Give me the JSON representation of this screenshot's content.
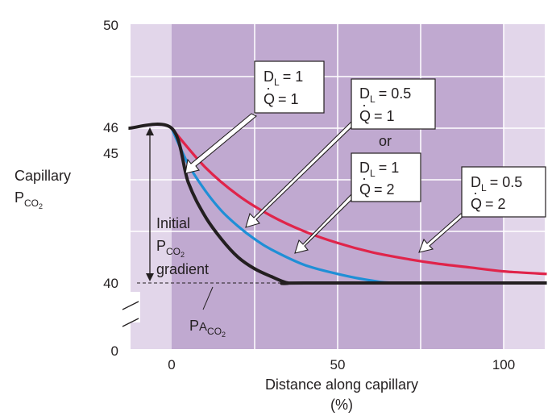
{
  "chart_data": {
    "type": "line",
    "title": "",
    "xlabel": "Distance along capillary",
    "xlabel_unit": "(%)",
    "ylabel": "Capillary",
    "ylabel_symbol": "P",
    "ylabel_subscript": "CO",
    "ylabel_sub_subscript": "2",
    "x_ticks": [
      "0",
      "50",
      "100"
    ],
    "y_ticks": [
      "0",
      "40",
      "45",
      "46",
      "50"
    ],
    "xlim": [
      -13,
      113
    ],
    "y_axis_break": [
      0,
      40
    ],
    "y_visible_range": [
      40,
      50
    ],
    "grid": true,
    "gridlines_x": [
      25,
      50,
      75,
      100
    ],
    "gridlines_y": [
      42,
      44,
      46,
      48
    ],
    "shaded_region_x": [
      0,
      100
    ],
    "series": [
      {
        "id": "dl1_q1",
        "color": "#231f20",
        "x": [
          -13,
          0,
          5,
          10,
          15,
          20,
          25,
          30,
          35,
          40,
          113
        ],
        "y": [
          46,
          46,
          43.9,
          42.6,
          41.7,
          41.0,
          40.55,
          40.25,
          40.0,
          40.0,
          40.0
        ]
      },
      {
        "id": "dl05_q1_or_dl1_q2",
        "color": "#1f8fd6",
        "x": [
          0,
          5,
          10,
          15,
          20,
          25,
          30,
          40,
          50,
          60,
          70,
          113
        ],
        "y": [
          46,
          44.6,
          43.6,
          42.8,
          42.2,
          41.7,
          41.3,
          40.7,
          40.35,
          40.1,
          40.0,
          40.0
        ]
      },
      {
        "id": "dl05_q2",
        "color": "#e0244a",
        "x": [
          0,
          10,
          20,
          30,
          40,
          50,
          60,
          70,
          80,
          90,
          100,
          113
        ],
        "y": [
          46,
          44.5,
          43.4,
          42.6,
          42.0,
          41.55,
          41.2,
          40.95,
          40.75,
          40.6,
          40.45,
          40.35
        ]
      }
    ],
    "annotations": {
      "initial_gradient": [
        "Initial",
        "P",
        "gradient"
      ],
      "initial_gradient_sub": "CO",
      "initial_gradient_subsub": "2",
      "alveolar_label": "P",
      "alveolar_sub": "A",
      "alveolar_subsub": "CO",
      "alveolar_subsubsub": "2",
      "callouts": [
        {
          "lines": [
            "D",
            "Q",
            "= 1"
          ],
          "d_sub": "L",
          "d_value": "= 1"
        },
        {
          "d_sub": "L",
          "d_value": "= 0.5",
          "q_value": "= 1"
        },
        {
          "text": "or"
        },
        {
          "d_sub": "L",
          "d_value": "= 1",
          "q_value": "= 2"
        },
        {
          "d_sub": "L",
          "d_value": "= 0.5",
          "q_value": "= 2"
        }
      ],
      "callout_symbols": {
        "d": "D",
        "q": "Q",
        "dot": "·"
      }
    },
    "colors": {
      "plot_background": "#e2d6ea",
      "shaded_band": "#c0a9d0",
      "grid": "#ffffff"
    }
  }
}
